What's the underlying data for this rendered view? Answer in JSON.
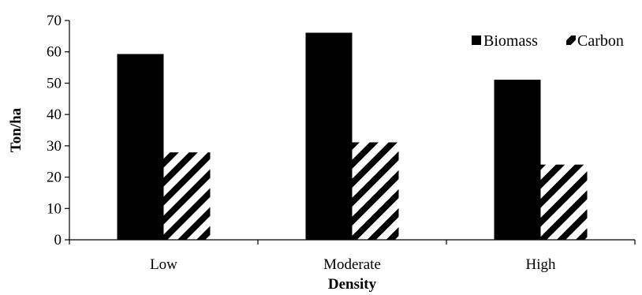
{
  "chart_data": {
    "type": "bar",
    "categories": [
      "Low",
      "Moderate",
      "High"
    ],
    "series": [
      {
        "name": "Biomass",
        "values": [
          59.3,
          66.1,
          51.1
        ],
        "color": "#000000",
        "pattern": "solid"
      },
      {
        "name": "Carbon",
        "values": [
          27.9,
          31.1,
          24.0
        ],
        "color": "#000000",
        "pattern": "diagonal-stripes"
      }
    ],
    "xlabel": "Density",
    "ylabel": "Ton/ha",
    "ylim": [
      0,
      70
    ],
    "yticks": [
      "0",
      "10",
      "20",
      "30",
      "40",
      "50",
      "60",
      "70"
    ],
    "grid": false,
    "legend_position": "top-right"
  }
}
